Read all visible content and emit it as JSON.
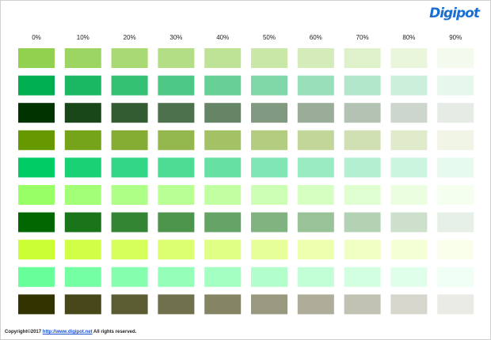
{
  "logo": {
    "text": "Digipot"
  },
  "columns": [
    {
      "value": 0,
      "label": "0%"
    },
    {
      "value": 10,
      "label": "10%"
    },
    {
      "value": 20,
      "label": "20%"
    },
    {
      "value": 30,
      "label": "30%"
    },
    {
      "value": 40,
      "label": "40%"
    },
    {
      "value": 50,
      "label": "50%"
    },
    {
      "value": 60,
      "label": "60%"
    },
    {
      "value": 70,
      "label": "70%"
    },
    {
      "value": 80,
      "label": "80%"
    },
    {
      "value": 90,
      "label": "90%"
    }
  ],
  "rows": [
    {
      "color": "#92d050"
    },
    {
      "color": "#00b050"
    },
    {
      "color": "#003300"
    },
    {
      "color": "#669900"
    },
    {
      "color": "#00cc66"
    },
    {
      "color": "#99ff66"
    },
    {
      "color": "#006600"
    },
    {
      "color": "#ccff33"
    },
    {
      "color": "#66ff99"
    },
    {
      "color": "#333300"
    }
  ],
  "footer": {
    "copyright": "Copyright©2017",
    "link": "http://www.digipot.net",
    "rights": "All rights reserved."
  }
}
